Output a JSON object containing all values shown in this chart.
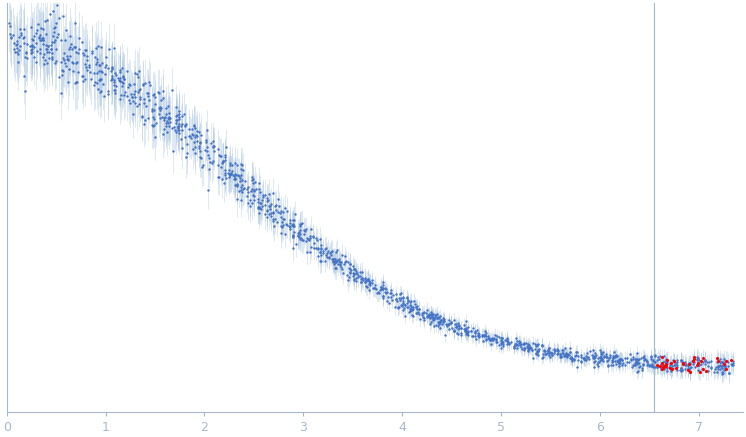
{
  "xlabel_color": "#a8b8cc",
  "ylabel_color": "#a8b8cc",
  "tick_color": "#a8b8cc",
  "spine_color": "#a8b8cc",
  "bg_color": "#ffffff",
  "dot_color_blue": "#4472C4",
  "dot_color_red": "#FF0000",
  "error_color": "#a8c4e0",
  "vline_color": "#a8b8cc",
  "vline_x": 6.55,
  "xmin": 0.0,
  "xmax": 7.45,
  "ymin": -0.005,
  "ymax": 0.068,
  "seed": 12345
}
